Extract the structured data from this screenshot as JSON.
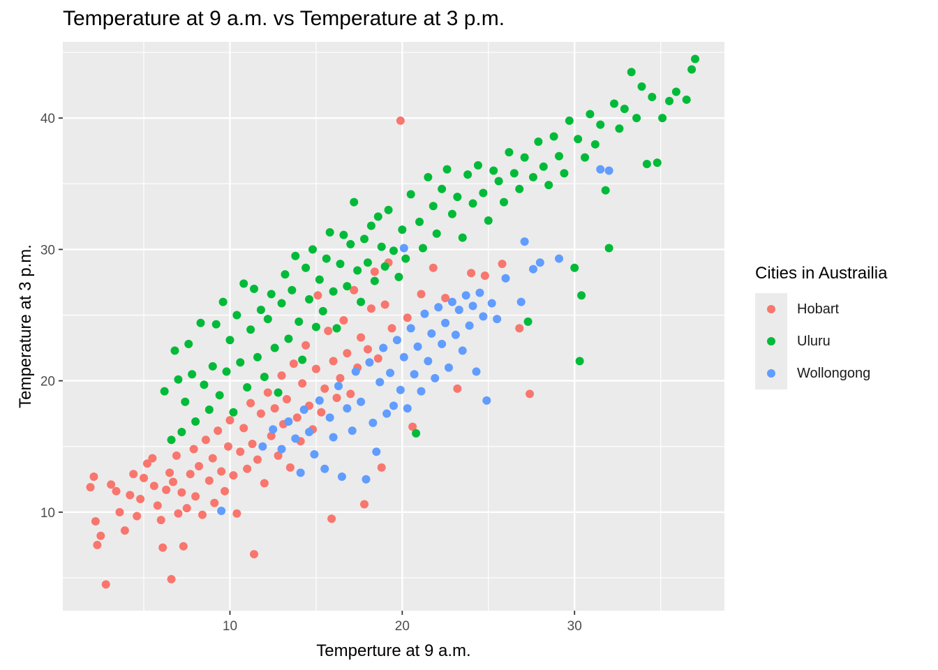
{
  "chart_data": {
    "type": "scatter",
    "title": "Temperature at 9 a.m. vs Temperature at 3 p.m.",
    "xlabel": "Temperture at 9 a.m.",
    "ylabel": "Temperature at 3 p.m.",
    "xlim": [
      0.3,
      38.7
    ],
    "ylim": [
      2.5,
      45.8
    ],
    "x_ticks": [
      10,
      20,
      30
    ],
    "y_ticks": [
      10,
      20,
      30,
      40
    ],
    "grid": true,
    "legend": {
      "title": "Cities in Austrailia",
      "position": "right"
    },
    "series": [
      {
        "name": "Hobart",
        "color": "#F8766D",
        "points": [
          [
            1.9,
            11.9
          ],
          [
            2.1,
            12.7
          ],
          [
            2.2,
            9.3
          ],
          [
            2.3,
            7.5
          ],
          [
            2.5,
            8.2
          ],
          [
            2.8,
            4.5
          ],
          [
            3.1,
            12.1
          ],
          [
            3.4,
            11.6
          ],
          [
            3.6,
            10.0
          ],
          [
            3.9,
            8.6
          ],
          [
            4.2,
            11.3
          ],
          [
            4.4,
            12.9
          ],
          [
            4.6,
            9.7
          ],
          [
            4.8,
            11.0
          ],
          [
            5.0,
            12.6
          ],
          [
            5.2,
            13.7
          ],
          [
            5.5,
            14.1
          ],
          [
            5.6,
            12.0
          ],
          [
            5.8,
            10.5
          ],
          [
            6.0,
            9.4
          ],
          [
            6.1,
            7.3
          ],
          [
            6.3,
            11.7
          ],
          [
            6.5,
            13.0
          ],
          [
            6.6,
            4.9
          ],
          [
            6.7,
            12.3
          ],
          [
            6.9,
            14.3
          ],
          [
            7.0,
            9.9
          ],
          [
            7.2,
            11.5
          ],
          [
            7.3,
            7.4
          ],
          [
            7.5,
            10.3
          ],
          [
            7.7,
            12.9
          ],
          [
            7.9,
            14.8
          ],
          [
            8.0,
            11.2
          ],
          [
            8.2,
            13.5
          ],
          [
            8.4,
            9.8
          ],
          [
            8.6,
            15.5
          ],
          [
            8.8,
            12.4
          ],
          [
            9.0,
            14.1
          ],
          [
            9.1,
            10.7
          ],
          [
            9.3,
            16.2
          ],
          [
            9.5,
            13.1
          ],
          [
            9.7,
            11.6
          ],
          [
            9.9,
            15.0
          ],
          [
            10.0,
            17.0
          ],
          [
            10.2,
            12.8
          ],
          [
            10.4,
            9.9
          ],
          [
            10.6,
            14.6
          ],
          [
            10.8,
            16.4
          ],
          [
            11.0,
            13.3
          ],
          [
            11.2,
            18.3
          ],
          [
            11.3,
            15.2
          ],
          [
            11.4,
            6.8
          ],
          [
            11.6,
            14.0
          ],
          [
            11.8,
            17.5
          ],
          [
            12.0,
            12.2
          ],
          [
            12.2,
            19.1
          ],
          [
            12.4,
            15.8
          ],
          [
            12.6,
            17.9
          ],
          [
            12.8,
            14.3
          ],
          [
            13.0,
            20.4
          ],
          [
            13.1,
            16.7
          ],
          [
            13.3,
            18.6
          ],
          [
            13.5,
            13.4
          ],
          [
            13.7,
            21.3
          ],
          [
            13.9,
            17.2
          ],
          [
            14.1,
            15.4
          ],
          [
            14.2,
            19.8
          ],
          [
            14.4,
            22.7
          ],
          [
            14.6,
            18.1
          ],
          [
            14.8,
            16.3
          ],
          [
            15.0,
            20.9
          ],
          [
            15.1,
            26.5
          ],
          [
            15.3,
            17.6
          ],
          [
            15.5,
            19.4
          ],
          [
            15.7,
            23.8
          ],
          [
            15.9,
            9.5
          ],
          [
            16.0,
            21.5
          ],
          [
            16.2,
            18.7
          ],
          [
            16.4,
            20.2
          ],
          [
            16.6,
            24.6
          ],
          [
            16.8,
            22.1
          ],
          [
            17.0,
            19.0
          ],
          [
            17.2,
            26.9
          ],
          [
            17.4,
            21.0
          ],
          [
            17.6,
            23.3
          ],
          [
            17.8,
            10.6
          ],
          [
            18.0,
            22.4
          ],
          [
            18.2,
            25.5
          ],
          [
            18.4,
            28.3
          ],
          [
            18.6,
            21.7
          ],
          [
            18.8,
            13.4
          ],
          [
            19.0,
            25.8
          ],
          [
            19.2,
            29.0
          ],
          [
            19.4,
            24.0
          ],
          [
            19.9,
            39.8
          ],
          [
            20.3,
            24.8
          ],
          [
            20.6,
            16.5
          ],
          [
            21.1,
            26.6
          ],
          [
            21.8,
            28.6
          ],
          [
            22.5,
            26.3
          ],
          [
            23.2,
            19.4
          ],
          [
            24.0,
            28.2
          ],
          [
            24.8,
            28.0
          ],
          [
            25.8,
            28.9
          ],
          [
            26.8,
            24.0
          ],
          [
            27.4,
            19.0
          ]
        ]
      },
      {
        "name": "Uluru",
        "color": "#00BA38",
        "points": [
          [
            6.2,
            19.2
          ],
          [
            6.6,
            15.5
          ],
          [
            6.8,
            22.3
          ],
          [
            7.0,
            20.1
          ],
          [
            7.2,
            16.1
          ],
          [
            7.4,
            18.4
          ],
          [
            7.6,
            22.8
          ],
          [
            7.8,
            20.5
          ],
          [
            8.0,
            16.9
          ],
          [
            8.3,
            24.4
          ],
          [
            8.5,
            19.7
          ],
          [
            8.8,
            17.8
          ],
          [
            9.0,
            21.1
          ],
          [
            9.2,
            24.3
          ],
          [
            9.4,
            18.9
          ],
          [
            9.6,
            26.0
          ],
          [
            9.8,
            20.7
          ],
          [
            10.0,
            23.1
          ],
          [
            10.2,
            17.6
          ],
          [
            10.4,
            25.0
          ],
          [
            10.6,
            21.4
          ],
          [
            10.8,
            27.4
          ],
          [
            11.0,
            19.5
          ],
          [
            11.2,
            23.9
          ],
          [
            11.4,
            27.0
          ],
          [
            11.6,
            21.8
          ],
          [
            11.8,
            25.4
          ],
          [
            12.0,
            20.3
          ],
          [
            12.2,
            24.7
          ],
          [
            12.4,
            26.6
          ],
          [
            12.6,
            22.5
          ],
          [
            12.8,
            19.1
          ],
          [
            13.0,
            25.9
          ],
          [
            13.2,
            28.1
          ],
          [
            13.4,
            23.2
          ],
          [
            13.6,
            26.9
          ],
          [
            13.8,
            29.5
          ],
          [
            14.0,
            24.5
          ],
          [
            14.2,
            21.6
          ],
          [
            14.4,
            28.6
          ],
          [
            14.6,
            26.2
          ],
          [
            14.8,
            30.0
          ],
          [
            15.0,
            24.1
          ],
          [
            15.2,
            27.7
          ],
          [
            15.4,
            25.3
          ],
          [
            15.6,
            29.3
          ],
          [
            15.8,
            31.3
          ],
          [
            16.0,
            26.8
          ],
          [
            16.2,
            24.0
          ],
          [
            16.4,
            28.9
          ],
          [
            16.6,
            31.1
          ],
          [
            16.8,
            27.2
          ],
          [
            17.0,
            30.4
          ],
          [
            17.2,
            33.6
          ],
          [
            17.4,
            28.4
          ],
          [
            17.6,
            26.0
          ],
          [
            17.8,
            30.8
          ],
          [
            18.0,
            29.0
          ],
          [
            18.2,
            31.8
          ],
          [
            18.4,
            27.6
          ],
          [
            18.6,
            32.5
          ],
          [
            18.8,
            30.2
          ],
          [
            19.0,
            28.7
          ],
          [
            19.2,
            33.0
          ],
          [
            19.5,
            29.9
          ],
          [
            19.8,
            27.9
          ],
          [
            20.0,
            31.5
          ],
          [
            20.2,
            29.3
          ],
          [
            20.5,
            34.2
          ],
          [
            20.8,
            16.0
          ],
          [
            21.0,
            32.1
          ],
          [
            21.2,
            30.1
          ],
          [
            21.5,
            35.5
          ],
          [
            21.8,
            33.3
          ],
          [
            22.0,
            31.2
          ],
          [
            22.3,
            34.6
          ],
          [
            22.6,
            36.1
          ],
          [
            22.9,
            32.7
          ],
          [
            23.2,
            34.0
          ],
          [
            23.5,
            30.9
          ],
          [
            23.8,
            35.7
          ],
          [
            24.1,
            33.5
          ],
          [
            24.4,
            36.4
          ],
          [
            24.7,
            34.3
          ],
          [
            25.0,
            32.2
          ],
          [
            25.3,
            36.0
          ],
          [
            25.6,
            35.2
          ],
          [
            25.9,
            33.6
          ],
          [
            26.2,
            37.4
          ],
          [
            26.5,
            35.8
          ],
          [
            26.8,
            34.6
          ],
          [
            27.1,
            37.0
          ],
          [
            27.3,
            24.5
          ],
          [
            27.6,
            35.5
          ],
          [
            27.9,
            38.2
          ],
          [
            28.2,
            36.3
          ],
          [
            28.5,
            34.9
          ],
          [
            28.8,
            38.6
          ],
          [
            29.1,
            37.1
          ],
          [
            29.4,
            35.8
          ],
          [
            29.7,
            39.8
          ],
          [
            30.0,
            28.6
          ],
          [
            30.2,
            38.4
          ],
          [
            30.3,
            21.5
          ],
          [
            30.4,
            26.5
          ],
          [
            30.6,
            37.0
          ],
          [
            30.9,
            40.3
          ],
          [
            31.2,
            38.0
          ],
          [
            31.5,
            39.5
          ],
          [
            31.8,
            34.5
          ],
          [
            32.0,
            30.1
          ],
          [
            32.3,
            41.1
          ],
          [
            32.6,
            39.2
          ],
          [
            32.9,
            40.7
          ],
          [
            33.3,
            43.5
          ],
          [
            33.6,
            40.0
          ],
          [
            33.9,
            42.4
          ],
          [
            34.2,
            36.5
          ],
          [
            34.5,
            41.6
          ],
          [
            34.8,
            36.6
          ],
          [
            35.1,
            40.0
          ],
          [
            35.5,
            41.3
          ],
          [
            35.9,
            42.0
          ],
          [
            36.5,
            41.4
          ],
          [
            36.8,
            43.7
          ],
          [
            37.0,
            44.5
          ]
        ]
      },
      {
        "name": "Wollongong",
        "color": "#619CFF",
        "points": [
          [
            9.5,
            10.1
          ],
          [
            11.9,
            15.0
          ],
          [
            12.5,
            16.3
          ],
          [
            13.0,
            14.8
          ],
          [
            13.4,
            16.9
          ],
          [
            13.8,
            15.6
          ],
          [
            14.1,
            13.0
          ],
          [
            14.3,
            17.8
          ],
          [
            14.6,
            16.1
          ],
          [
            14.9,
            14.4
          ],
          [
            15.2,
            18.5
          ],
          [
            15.5,
            13.3
          ],
          [
            15.8,
            17.2
          ],
          [
            16.0,
            15.7
          ],
          [
            16.3,
            19.6
          ],
          [
            16.5,
            12.7
          ],
          [
            16.8,
            17.9
          ],
          [
            17.1,
            16.2
          ],
          [
            17.3,
            20.7
          ],
          [
            17.6,
            18.4
          ],
          [
            17.9,
            12.5
          ],
          [
            18.1,
            21.4
          ],
          [
            18.3,
            16.8
          ],
          [
            18.5,
            14.6
          ],
          [
            18.7,
            19.9
          ],
          [
            18.9,
            22.5
          ],
          [
            19.1,
            17.5
          ],
          [
            19.3,
            20.6
          ],
          [
            19.5,
            18.1
          ],
          [
            19.7,
            23.1
          ],
          [
            19.9,
            19.3
          ],
          [
            20.1,
            21.8
          ],
          [
            20.1,
            30.1
          ],
          [
            20.3,
            17.9
          ],
          [
            20.5,
            24.0
          ],
          [
            20.7,
            20.5
          ],
          [
            20.9,
            22.6
          ],
          [
            21.1,
            19.2
          ],
          [
            21.3,
            25.1
          ],
          [
            21.5,
            21.5
          ],
          [
            21.7,
            23.6
          ],
          [
            21.9,
            20.2
          ],
          [
            22.1,
            25.6
          ],
          [
            22.3,
            22.8
          ],
          [
            22.5,
            24.4
          ],
          [
            22.7,
            21.0
          ],
          [
            22.9,
            26.0
          ],
          [
            23.1,
            23.5
          ],
          [
            23.3,
            25.4
          ],
          [
            23.5,
            22.3
          ],
          [
            23.7,
            26.5
          ],
          [
            23.9,
            24.2
          ],
          [
            24.1,
            25.7
          ],
          [
            24.3,
            20.7
          ],
          [
            24.5,
            26.7
          ],
          [
            24.7,
            24.9
          ],
          [
            24.9,
            18.5
          ],
          [
            25.2,
            25.9
          ],
          [
            25.5,
            24.7
          ],
          [
            26.0,
            27.8
          ],
          [
            26.9,
            26.0
          ],
          [
            27.1,
            30.6
          ],
          [
            27.6,
            28.5
          ],
          [
            28.0,
            29.0
          ],
          [
            29.1,
            29.3
          ],
          [
            31.5,
            36.1
          ],
          [
            32.0,
            36.0
          ]
        ]
      }
    ]
  }
}
